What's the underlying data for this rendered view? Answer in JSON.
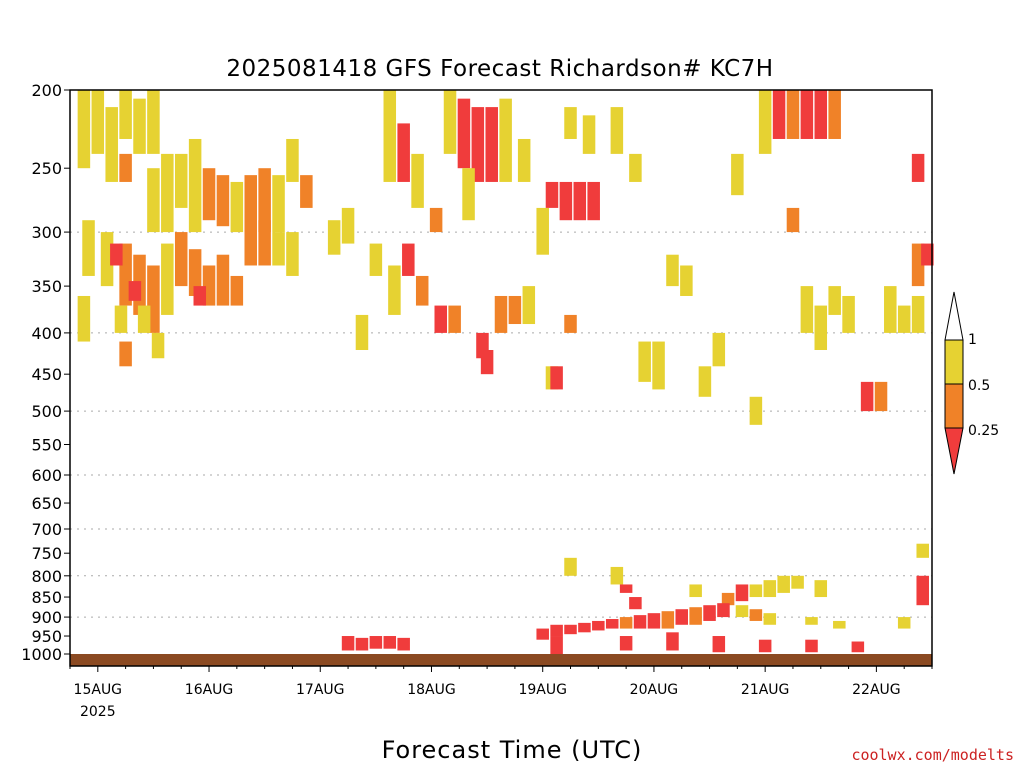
{
  "credit": "coolwx.com/modelts",
  "colors": {
    "below_0_25": "#f03c3c",
    "r_0_25_to_0_5": "#f08228",
    "r_0_5_to_1": "#e6d232",
    "ground": "#8b4a22",
    "grid": "#aaaaaa"
  },
  "chart_data": {
    "type": "heatmap",
    "title": "2025081418 GFS Forecast Richardson# KC7H",
    "xlabel": "Forecast Time (UTC)",
    "ylabel": "",
    "x_unit": "hours since 2025-08-14 18Z",
    "x_range": [
      0,
      186
    ],
    "x_ticks": [
      {
        "t": 6,
        "label": "15AUG",
        "sub": "2025"
      },
      {
        "t": 30,
        "label": "16AUG",
        "sub": ""
      },
      {
        "t": 54,
        "label": "17AUG",
        "sub": ""
      },
      {
        "t": 78,
        "label": "18AUG",
        "sub": ""
      },
      {
        "t": 102,
        "label": "19AUG",
        "sub": ""
      },
      {
        "t": 126,
        "label": "20AUG",
        "sub": ""
      },
      {
        "t": 150,
        "label": "21AUG",
        "sub": ""
      },
      {
        "t": 174,
        "label": "22AUG",
        "sub": ""
      }
    ],
    "y_axis": "pressure (hPa), log scale, inverted",
    "y_range": [
      200,
      1000
    ],
    "y_ticks": [
      200,
      250,
      300,
      350,
      400,
      450,
      500,
      550,
      600,
      650,
      700,
      750,
      800,
      850,
      900,
      950,
      1000
    ],
    "y_grid_dotted": [
      300,
      400,
      500,
      600,
      700,
      800,
      900
    ],
    "colorbar": {
      "labels": [
        "1",
        "0.5",
        "0.25"
      ],
      "bins": [
        {
          "range": "0.5-1",
          "color": "#e6d232"
        },
        {
          "range": "0.25-0.5",
          "color": "#f08228"
        },
        {
          "range": "<0.25",
          "color": "#f03c3c"
        }
      ]
    },
    "cells": [
      {
        "t": 3,
        "p1": 200,
        "p2": 250,
        "v": 0.7
      },
      {
        "t": 6,
        "p1": 200,
        "p2": 240,
        "v": 0.7
      },
      {
        "t": 9,
        "p1": 210,
        "p2": 260,
        "v": 0.7
      },
      {
        "t": 12,
        "p1": 200,
        "p2": 230,
        "v": 0.7
      },
      {
        "t": 12,
        "p1": 240,
        "p2": 260,
        "v": 0.4
      },
      {
        "t": 15,
        "p1": 205,
        "p2": 240,
        "v": 0.7
      },
      {
        "t": 18,
        "p1": 200,
        "p2": 240,
        "v": 0.7
      },
      {
        "t": 18,
        "p1": 250,
        "p2": 300,
        "v": 0.7
      },
      {
        "t": 21,
        "p1": 240,
        "p2": 300,
        "v": 0.7
      },
      {
        "t": 24,
        "p1": 240,
        "p2": 280,
        "v": 0.7
      },
      {
        "t": 27,
        "p1": 230,
        "p2": 300,
        "v": 0.7
      },
      {
        "t": 30,
        "p1": 250,
        "p2": 290,
        "v": 0.4
      },
      {
        "t": 33,
        "p1": 255,
        "p2": 295,
        "v": 0.4
      },
      {
        "t": 36,
        "p1": 260,
        "p2": 300,
        "v": 0.7
      },
      {
        "t": 39,
        "p1": 255,
        "p2": 300,
        "v": 0.4
      },
      {
        "t": 42,
        "p1": 250,
        "p2": 300,
        "v": 0.4
      },
      {
        "t": 45,
        "p1": 255,
        "p2": 300,
        "v": 0.7
      },
      {
        "t": 48,
        "p1": 230,
        "p2": 260,
        "v": 0.7
      },
      {
        "t": 51,
        "p1": 255,
        "p2": 280,
        "v": 0.4
      },
      {
        "t": 4,
        "p1": 290,
        "p2": 340,
        "v": 0.7
      },
      {
        "t": 8,
        "p1": 300,
        "p2": 350,
        "v": 0.7
      },
      {
        "t": 12,
        "p1": 310,
        "p2": 370,
        "v": 0.4
      },
      {
        "t": 15,
        "p1": 320,
        "p2": 380,
        "v": 0.4
      },
      {
        "t": 18,
        "p1": 330,
        "p2": 400,
        "v": 0.4
      },
      {
        "t": 21,
        "p1": 310,
        "p2": 380,
        "v": 0.7
      },
      {
        "t": 24,
        "p1": 300,
        "p2": 350,
        "v": 0.4
      },
      {
        "t": 27,
        "p1": 315,
        "p2": 360,
        "v": 0.4
      },
      {
        "t": 30,
        "p1": 330,
        "p2": 370,
        "v": 0.4
      },
      {
        "t": 33,
        "p1": 320,
        "p2": 370,
        "v": 0.4
      },
      {
        "t": 36,
        "p1": 340,
        "p2": 370,
        "v": 0.4
      },
      {
        "t": 39,
        "p1": 285,
        "p2": 330,
        "v": 0.4
      },
      {
        "t": 42,
        "p1": 290,
        "p2": 330,
        "v": 0.4
      },
      {
        "t": 45,
        "p1": 300,
        "p2": 330,
        "v": 0.7
      },
      {
        "t": 48,
        "p1": 300,
        "p2": 340,
        "v": 0.7
      },
      {
        "t": 10,
        "p1": 310,
        "p2": 330,
        "v": 0.1
      },
      {
        "t": 14,
        "p1": 345,
        "p2": 365,
        "v": 0.1
      },
      {
        "t": 28,
        "p1": 350,
        "p2": 370,
        "v": 0.1
      },
      {
        "t": 3,
        "p1": 360,
        "p2": 410,
        "v": 0.7
      },
      {
        "t": 11,
        "p1": 370,
        "p2": 400,
        "v": 0.7
      },
      {
        "t": 12,
        "p1": 410,
        "p2": 440,
        "v": 0.4
      },
      {
        "t": 16,
        "p1": 370,
        "p2": 400,
        "v": 0.7
      },
      {
        "t": 19,
        "p1": 400,
        "p2": 430,
        "v": 0.7
      },
      {
        "t": 57,
        "p1": 290,
        "p2": 320,
        "v": 0.7
      },
      {
        "t": 60,
        "p1": 280,
        "p2": 310,
        "v": 0.7
      },
      {
        "t": 63,
        "p1": 380,
        "p2": 420,
        "v": 0.7
      },
      {
        "t": 66,
        "p1": 310,
        "p2": 340,
        "v": 0.7
      },
      {
        "t": 70,
        "p1": 330,
        "p2": 380,
        "v": 0.7
      },
      {
        "t": 69,
        "p1": 200,
        "p2": 260,
        "v": 0.7
      },
      {
        "t": 72,
        "p1": 220,
        "p2": 260,
        "v": 0.1
      },
      {
        "t": 75,
        "p1": 240,
        "p2": 280,
        "v": 0.7
      },
      {
        "t": 73,
        "p1": 310,
        "p2": 340,
        "v": 0.1
      },
      {
        "t": 76,
        "p1": 340,
        "p2": 370,
        "v": 0.4
      },
      {
        "t": 79,
        "p1": 280,
        "p2": 300,
        "v": 0.4
      },
      {
        "t": 80,
        "p1": 370,
        "p2": 400,
        "v": 0.1
      },
      {
        "t": 83,
        "p1": 370,
        "p2": 400,
        "v": 0.4
      },
      {
        "t": 82,
        "p1": 200,
        "p2": 240,
        "v": 0.7
      },
      {
        "t": 85,
        "p1": 205,
        "p2": 250,
        "v": 0.1
      },
      {
        "t": 88,
        "p1": 210,
        "p2": 260,
        "v": 0.1
      },
      {
        "t": 86,
        "p1": 250,
        "p2": 290,
        "v": 0.7
      },
      {
        "t": 91,
        "p1": 210,
        "p2": 260,
        "v": 0.1
      },
      {
        "t": 94,
        "p1": 205,
        "p2": 260,
        "v": 0.7
      },
      {
        "t": 89,
        "p1": 400,
        "p2": 430,
        "v": 0.1
      },
      {
        "t": 90,
        "p1": 420,
        "p2": 450,
        "v": 0.1
      },
      {
        "t": 93,
        "p1": 360,
        "p2": 400,
        "v": 0.4
      },
      {
        "t": 96,
        "p1": 360,
        "p2": 390,
        "v": 0.4
      },
      {
        "t": 99,
        "p1": 350,
        "p2": 390,
        "v": 0.7
      },
      {
        "t": 98,
        "p1": 230,
        "p2": 260,
        "v": 0.7
      },
      {
        "t": 102,
        "p1": 280,
        "p2": 320,
        "v": 0.7
      },
      {
        "t": 104,
        "p1": 260,
        "p2": 280,
        "v": 0.1
      },
      {
        "t": 107,
        "p1": 260,
        "p2": 290,
        "v": 0.1
      },
      {
        "t": 110,
        "p1": 260,
        "p2": 290,
        "v": 0.1
      },
      {
        "t": 113,
        "p1": 260,
        "p2": 290,
        "v": 0.1
      },
      {
        "t": 108,
        "p1": 210,
        "p2": 230,
        "v": 0.7
      },
      {
        "t": 112,
        "p1": 215,
        "p2": 240,
        "v": 0.7
      },
      {
        "t": 104,
        "p1": 440,
        "p2": 470,
        "v": 0.7
      },
      {
        "t": 105,
        "p1": 440,
        "p2": 470,
        "v": 0.1
      },
      {
        "t": 108,
        "p1": 380,
        "p2": 400,
        "v": 0.4
      },
      {
        "t": 118,
        "p1": 210,
        "p2": 240,
        "v": 0.7
      },
      {
        "t": 122,
        "p1": 240,
        "p2": 260,
        "v": 0.7
      },
      {
        "t": 124,
        "p1": 410,
        "p2": 460,
        "v": 0.7
      },
      {
        "t": 127,
        "p1": 410,
        "p2": 470,
        "v": 0.7
      },
      {
        "t": 130,
        "p1": 320,
        "p2": 350,
        "v": 0.7
      },
      {
        "t": 133,
        "p1": 330,
        "p2": 360,
        "v": 0.7
      },
      {
        "t": 137,
        "p1": 440,
        "p2": 480,
        "v": 0.7
      },
      {
        "t": 140,
        "p1": 400,
        "p2": 440,
        "v": 0.7
      },
      {
        "t": 144,
        "p1": 240,
        "p2": 270,
        "v": 0.7
      },
      {
        "t": 148,
        "p1": 480,
        "p2": 520,
        "v": 0.7
      },
      {
        "t": 150,
        "p1": 200,
        "p2": 240,
        "v": 0.7
      },
      {
        "t": 153,
        "p1": 200,
        "p2": 230,
        "v": 0.1
      },
      {
        "t": 156,
        "p1": 200,
        "p2": 230,
        "v": 0.4
      },
      {
        "t": 159,
        "p1": 200,
        "p2": 230,
        "v": 0.1
      },
      {
        "t": 162,
        "p1": 200,
        "p2": 230,
        "v": 0.1
      },
      {
        "t": 165,
        "p1": 200,
        "p2": 230,
        "v": 0.4
      },
      {
        "t": 156,
        "p1": 280,
        "p2": 300,
        "v": 0.4
      },
      {
        "t": 159,
        "p1": 350,
        "p2": 400,
        "v": 0.7
      },
      {
        "t": 162,
        "p1": 370,
        "p2": 420,
        "v": 0.7
      },
      {
        "t": 165,
        "p1": 350,
        "p2": 380,
        "v": 0.7
      },
      {
        "t": 168,
        "p1": 360,
        "p2": 400,
        "v": 0.7
      },
      {
        "t": 172,
        "p1": 460,
        "p2": 500,
        "v": 0.1
      },
      {
        "t": 175,
        "p1": 460,
        "p2": 500,
        "v": 0.4
      },
      {
        "t": 177,
        "p1": 350,
        "p2": 400,
        "v": 0.7
      },
      {
        "t": 180,
        "p1": 370,
        "p2": 400,
        "v": 0.7
      },
      {
        "t": 183,
        "p1": 360,
        "p2": 400,
        "v": 0.7
      },
      {
        "t": 183,
        "p1": 240,
        "p2": 260,
        "v": 0.1
      },
      {
        "t": 183,
        "p1": 310,
        "p2": 350,
        "v": 0.4
      },
      {
        "t": 185,
        "p1": 310,
        "p2": 330,
        "v": 0.1
      },
      {
        "t": 108,
        "p1": 760,
        "p2": 800,
        "v": 0.7
      },
      {
        "t": 118,
        "p1": 780,
        "p2": 820,
        "v": 0.7
      },
      {
        "t": 120,
        "p1": 820,
        "p2": 840,
        "v": 0.1
      },
      {
        "t": 122,
        "p1": 850,
        "p2": 880,
        "v": 0.1
      },
      {
        "t": 135,
        "p1": 820,
        "p2": 850,
        "v": 0.7
      },
      {
        "t": 142,
        "p1": 840,
        "p2": 870,
        "v": 0.4
      },
      {
        "t": 145,
        "p1": 820,
        "p2": 860,
        "v": 0.1
      },
      {
        "t": 148,
        "p1": 820,
        "p2": 850,
        "v": 0.7
      },
      {
        "t": 151,
        "p1": 810,
        "p2": 850,
        "v": 0.7
      },
      {
        "t": 154,
        "p1": 800,
        "p2": 840,
        "v": 0.7
      },
      {
        "t": 157,
        "p1": 800,
        "p2": 830,
        "v": 0.7
      },
      {
        "t": 162,
        "p1": 810,
        "p2": 850,
        "v": 0.7
      },
      {
        "t": 184,
        "p1": 730,
        "p2": 760,
        "v": 0.7
      },
      {
        "t": 184,
        "p1": 800,
        "p2": 870,
        "v": 0.1
      },
      {
        "t": 180,
        "p1": 900,
        "p2": 930,
        "v": 0.7
      },
      {
        "t": 145,
        "p1": 870,
        "p2": 900,
        "v": 0.7
      },
      {
        "t": 148,
        "p1": 880,
        "p2": 910,
        "v": 0.4
      },
      {
        "t": 151,
        "p1": 890,
        "p2": 920,
        "v": 0.7
      },
      {
        "t": 160,
        "p1": 900,
        "p2": 920,
        "v": 0.7
      },
      {
        "t": 166,
        "p1": 910,
        "p2": 930,
        "v": 0.7
      },
      {
        "t": 102,
        "p1": 930,
        "p2": 960,
        "v": 0.1
      },
      {
        "t": 105,
        "p1": 920,
        "p2": 950,
        "v": 0.1
      },
      {
        "t": 108,
        "p1": 920,
        "p2": 945,
        "v": 0.1
      },
      {
        "t": 111,
        "p1": 915,
        "p2": 940,
        "v": 0.1
      },
      {
        "t": 114,
        "p1": 910,
        "p2": 935,
        "v": 0.1
      },
      {
        "t": 117,
        "p1": 905,
        "p2": 930,
        "v": 0.1
      },
      {
        "t": 120,
        "p1": 900,
        "p2": 930,
        "v": 0.4
      },
      {
        "t": 123,
        "p1": 895,
        "p2": 930,
        "v": 0.1
      },
      {
        "t": 126,
        "p1": 890,
        "p2": 930,
        "v": 0.1
      },
      {
        "t": 129,
        "p1": 885,
        "p2": 930,
        "v": 0.4
      },
      {
        "t": 132,
        "p1": 880,
        "p2": 920,
        "v": 0.1
      },
      {
        "t": 135,
        "p1": 875,
        "p2": 920,
        "v": 0.4
      },
      {
        "t": 138,
        "p1": 870,
        "p2": 910,
        "v": 0.1
      },
      {
        "t": 141,
        "p1": 865,
        "p2": 900,
        "v": 0.1
      },
      {
        "t": 60,
        "p1": 950,
        "p2": 990,
        "v": 0.1
      },
      {
        "t": 63,
        "p1": 955,
        "p2": 990,
        "v": 0.1
      },
      {
        "t": 66,
        "p1": 950,
        "p2": 985,
        "v": 0.1
      },
      {
        "t": 69,
        "p1": 950,
        "p2": 985,
        "v": 0.1
      },
      {
        "t": 72,
        "p1": 955,
        "p2": 990,
        "v": 0.1
      },
      {
        "t": 105,
        "p1": 950,
        "p2": 1000,
        "v": 0.1
      },
      {
        "t": 120,
        "p1": 950,
        "p2": 990,
        "v": 0.1
      },
      {
        "t": 130,
        "p1": 940,
        "p2": 990,
        "v": 0.1
      },
      {
        "t": 140,
        "p1": 950,
        "p2": 995,
        "v": 0.1
      },
      {
        "t": 150,
        "p1": 960,
        "p2": 995,
        "v": 0.1
      },
      {
        "t": 160,
        "p1": 960,
        "p2": 995,
        "v": 0.1
      },
      {
        "t": 170,
        "p1": 965,
        "p2": 995,
        "v": 0.1
      }
    ]
  }
}
